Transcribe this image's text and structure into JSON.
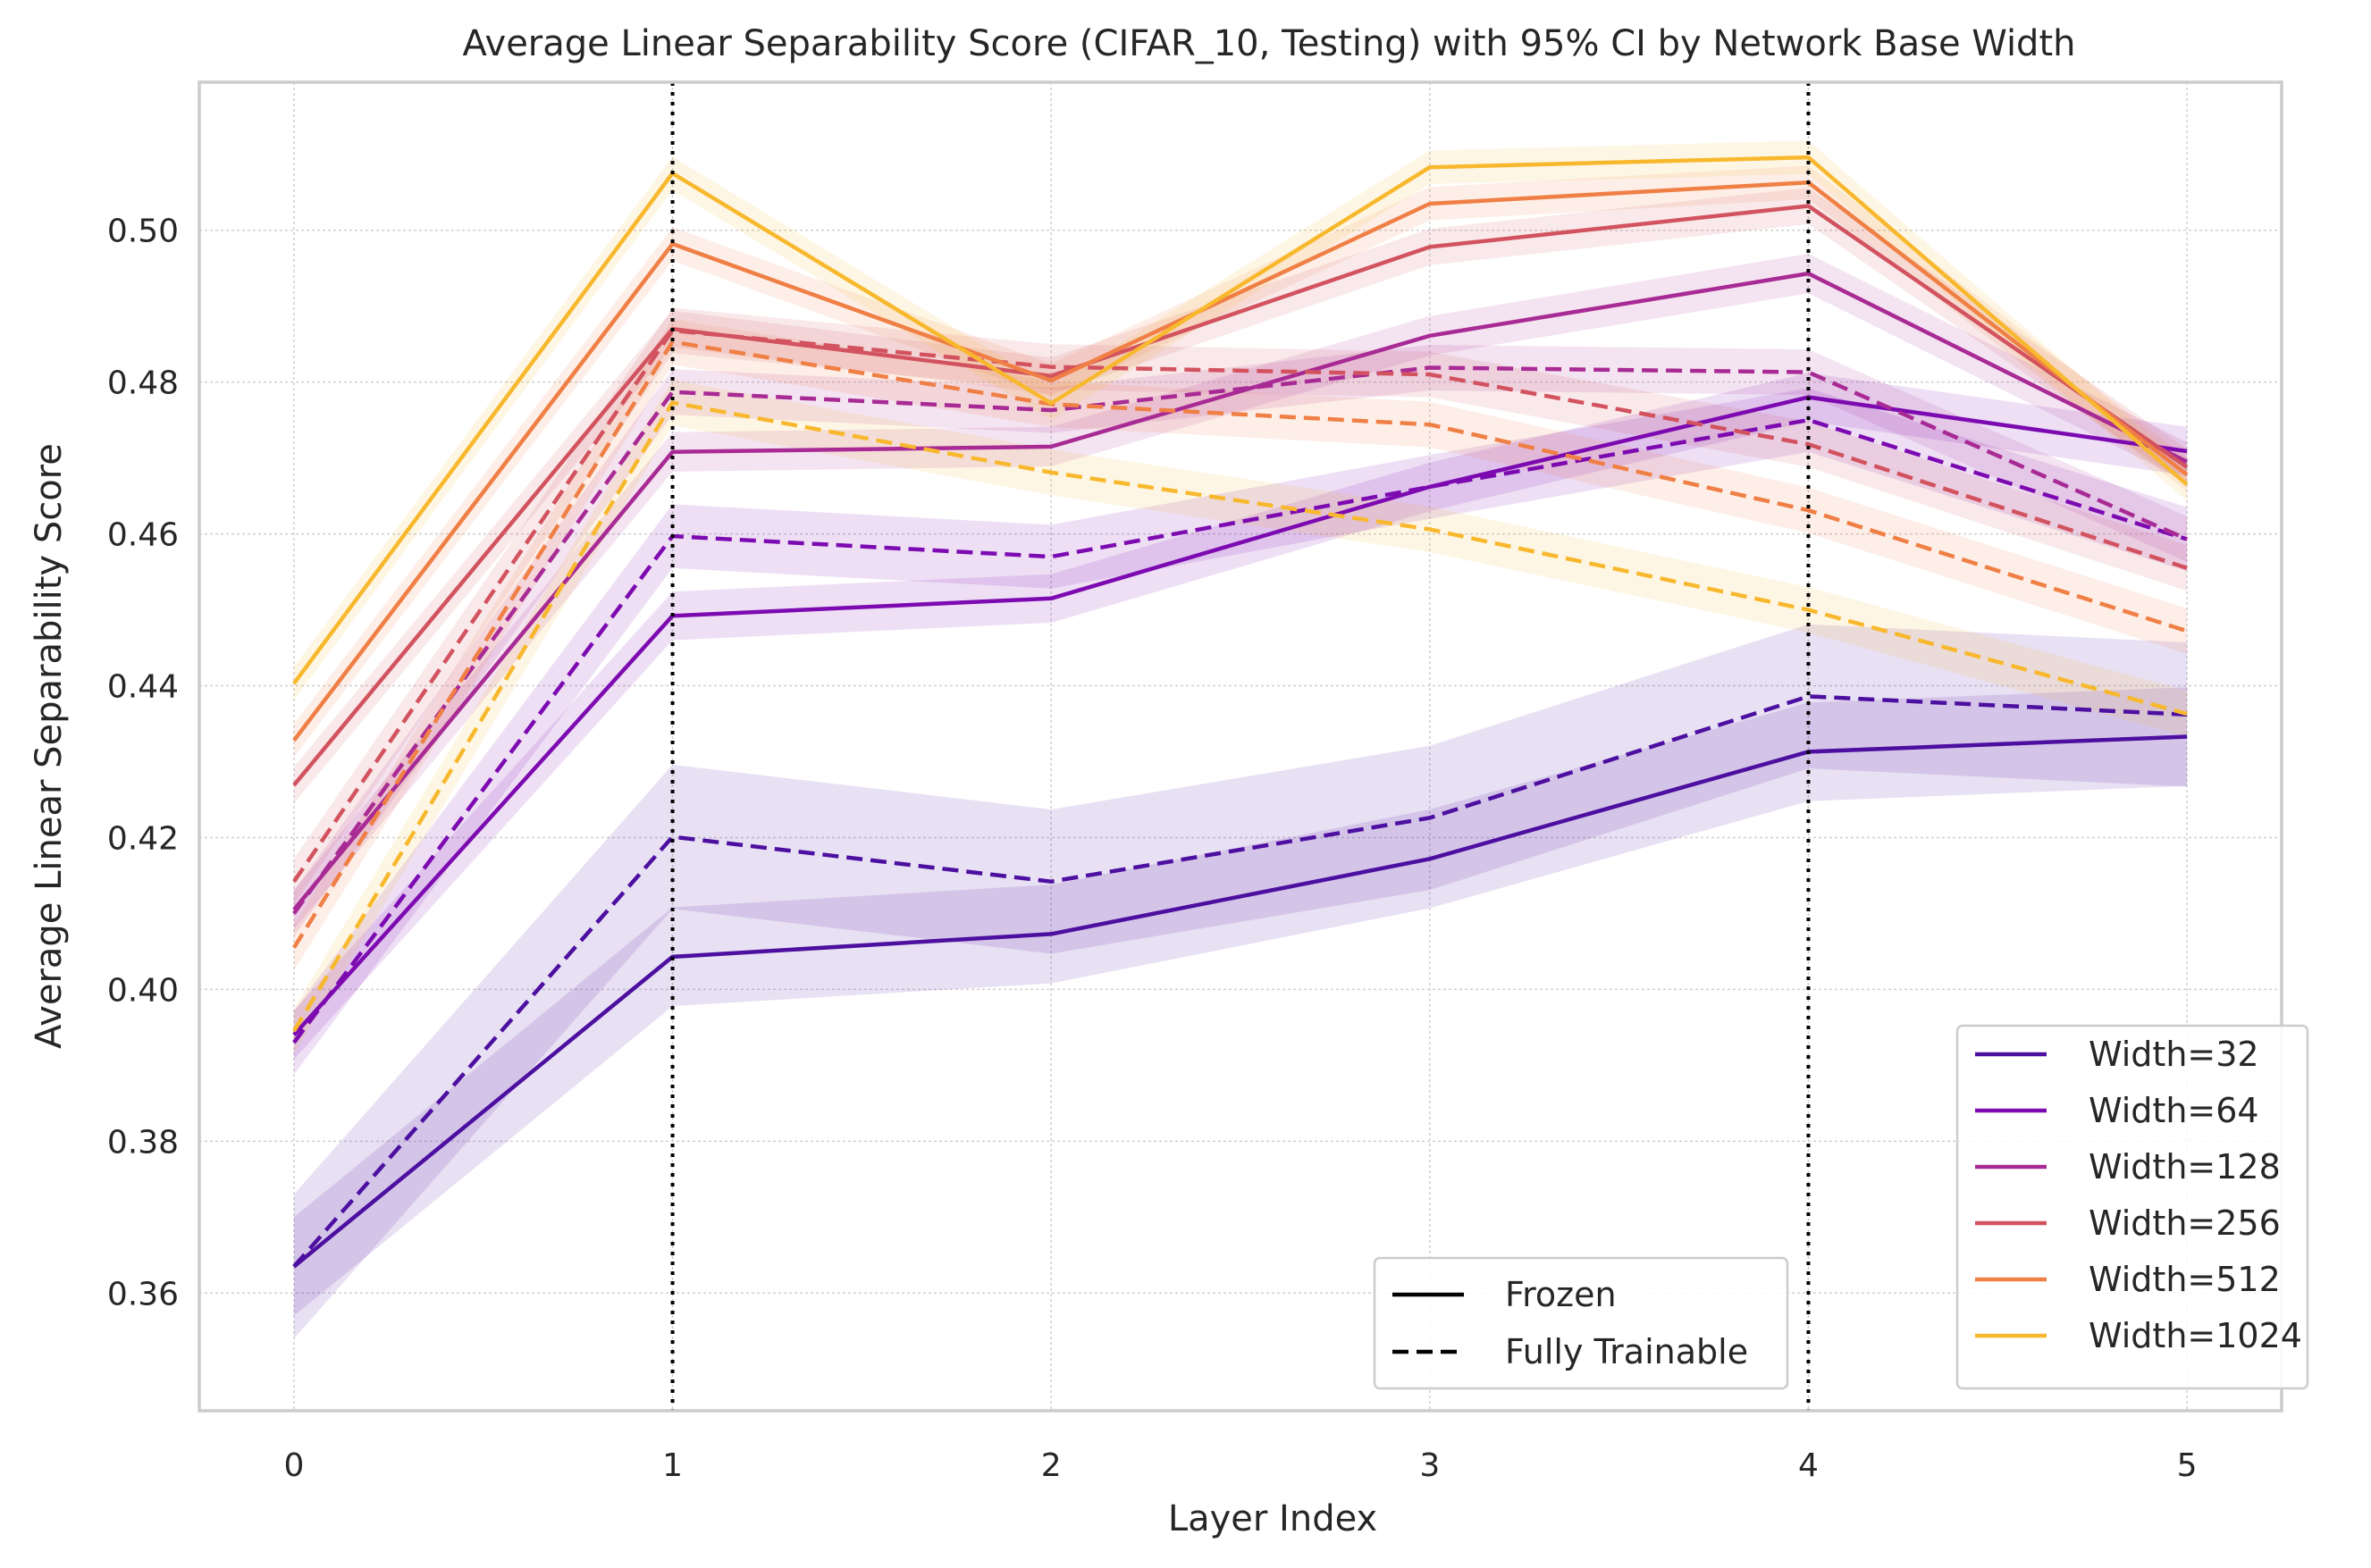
{
  "chart_data": {
    "type": "line",
    "title": "Average Linear Separability Score (CIFAR_10, Testing) with 95% CI by Network Base Width",
    "xlabel": "Layer Index",
    "ylabel": "Average Linear Separability Score",
    "x": [
      0,
      1,
      2,
      3,
      4,
      5
    ],
    "xticks": [
      "0",
      "1",
      "2",
      "3",
      "4",
      "5"
    ],
    "yticks": [
      "0.36",
      "0.38",
      "0.40",
      "0.42",
      "0.44",
      "0.46",
      "0.48",
      "0.50"
    ],
    "xlim": [
      -0.25,
      5.25
    ],
    "ylim": [
      0.3445,
      0.5195
    ],
    "grid": true,
    "vertical_markers": [
      1,
      4
    ],
    "series": [
      {
        "name": "Width=32",
        "color": "#4c0fa0",
        "frozen": [
          0.3635,
          0.4043,
          0.4073,
          0.4172,
          0.4313,
          0.4333
        ],
        "fully_trainable": [
          0.3635,
          0.4201,
          0.4142,
          0.4226,
          0.4386,
          0.4362
        ],
        "ci_frozen": 0.0065,
        "ci_trainable": 0.0095
      },
      {
        "name": "Width=64",
        "color": "#7c0ab0",
        "frozen": [
          0.394,
          0.4492,
          0.4515,
          0.4662,
          0.478,
          0.4709
        ],
        "fully_trainable": [
          0.393,
          0.4597,
          0.457,
          0.4662,
          0.475,
          0.4593
        ],
        "ci_frozen": 0.0032,
        "ci_trainable": 0.0042
      },
      {
        "name": "Width=128",
        "color": "#a82a94",
        "frozen": [
          0.4105,
          0.4708,
          0.4715,
          0.4861,
          0.4943,
          0.4695
        ],
        "fully_trainable": [
          0.41,
          0.4787,
          0.4763,
          0.4819,
          0.4813,
          0.4593
        ],
        "ci_frozen": 0.0026,
        "ci_trainable": 0.003
      },
      {
        "name": "Width=256",
        "color": "#d2535f",
        "frozen": [
          0.4269,
          0.487,
          0.4808,
          0.4978,
          0.5032,
          0.4688
        ],
        "fully_trainable": [
          0.4142,
          0.4868,
          0.482,
          0.481,
          0.4718,
          0.4555
        ],
        "ci_frozen": 0.0024,
        "ci_trainable": 0.003
      },
      {
        "name": "Width=512",
        "color": "#ef7f45",
        "frozen": [
          0.4328,
          0.4982,
          0.4802,
          0.5035,
          0.5063,
          0.4678
        ],
        "fully_trainable": [
          0.4055,
          0.4853,
          0.4771,
          0.4744,
          0.4631,
          0.4472
        ],
        "ci_frozen": 0.0022,
        "ci_trainable": 0.003
      },
      {
        "name": "Width=1024",
        "color": "#f8b82e",
        "frozen": [
          0.4403,
          0.5075,
          0.4772,
          0.5083,
          0.5096,
          0.4665
        ],
        "fully_trainable": [
          0.3945,
          0.4773,
          0.4681,
          0.4606,
          0.45,
          0.4363
        ],
        "ci_frozen": 0.0022,
        "ci_trainable": 0.003
      }
    ],
    "style_legend": [
      {
        "label": "Frozen",
        "dash": "solid"
      },
      {
        "label": "Fully Trainable",
        "dash": "dashed"
      }
    ],
    "legend_placement": "lower right"
  }
}
